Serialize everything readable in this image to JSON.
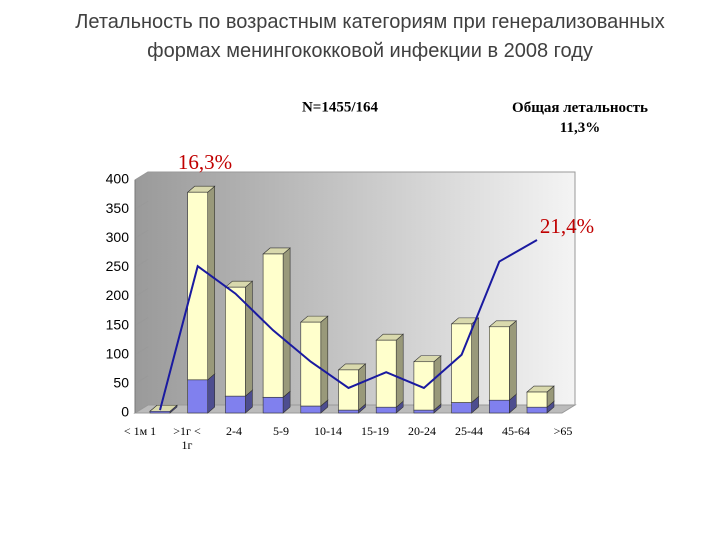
{
  "chart_data": {
    "type": "bar",
    "title": "Летальность по возрастным категориям при генерализованных  формах менингококковой инфекции в 2008 году",
    "annotations": [
      "N=1455/164",
      "Общая летальность 11,3%",
      "16,3%",
      "21,4%"
    ],
    "categories": [
      "< 1м 1",
      ">1г < 1г",
      "2-4",
      "5-9",
      "10-14",
      "15-19",
      "20-24",
      "25-44",
      "45-64",
      ">65",
      null
    ],
    "series": [
      {
        "color": "#8080ee",
        "values": [
          3,
          57,
          29,
          27,
          12,
          5,
          10,
          5,
          18,
          22,
          10
        ]
      },
      {
        "color": "#ffffcc",
        "values": [
          0,
          322,
          187,
          246,
          144,
          69,
          115,
          83,
          135,
          126,
          26
        ]
      },
      {
        "type": "line",
        "color": "#1a1aa0",
        "values": [
          5,
          252,
          205,
          142,
          88,
          43,
          70,
          43,
          100,
          260,
          297
        ]
      }
    ],
    "ylim": [
      0,
      400
    ],
    "yticks": [
      0,
      50,
      100,
      150,
      200,
      250,
      300,
      350,
      400
    ]
  }
}
